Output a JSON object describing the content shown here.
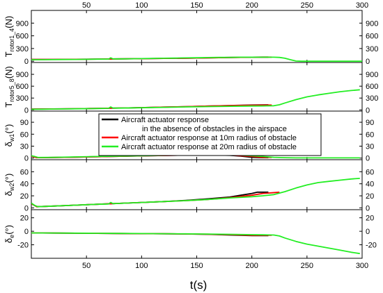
{
  "chart_data": [
    {
      "type": "line",
      "ylabel": {
        "main": "T",
        "sub": "rotor1_4",
        "unit": "(N)"
      },
      "yticks": [
        0,
        300,
        600,
        900
      ],
      "ylim": [
        -30,
        1200
      ],
      "x": [
        0,
        10,
        20,
        30,
        40,
        50,
        60,
        70,
        80,
        90,
        100,
        110,
        120,
        130,
        140,
        150,
        160,
        170,
        180,
        190,
        200,
        210,
        215,
        220,
        225,
        230,
        240,
        250,
        260,
        270,
        280,
        290,
        300
      ],
      "series": [
        {
          "name": "Aircraft actuator response in the absence of obstacles in the airspace",
          "color": "#000000",
          "x": [
            0,
            20,
            40,
            60,
            80,
            100,
            120,
            140,
            160,
            180,
            190,
            200,
            210,
            215
          ],
          "values": [
            40,
            42,
            46,
            50,
            55,
            60,
            66,
            72,
            80,
            88,
            92,
            95,
            96,
            96
          ]
        },
        {
          "name": "Aircraft actuator response at 10m radius of obstacle",
          "color": "#ff0000",
          "x": [
            0,
            20,
            40,
            60,
            80,
            100,
            120,
            140,
            160,
            180,
            190,
            200,
            210,
            218
          ],
          "values": [
            40,
            42,
            46,
            50,
            55,
            60,
            66,
            72,
            80,
            88,
            92,
            95,
            96,
            96
          ]
        },
        {
          "name": "Aircraft actuator response at 20m radius of obstacle",
          "color": "#22ee22",
          "x": [
            0,
            10,
            20,
            30,
            40,
            50,
            60,
            70,
            72,
            74,
            80,
            90,
            100,
            110,
            120,
            130,
            140,
            150,
            160,
            170,
            180,
            190,
            200,
            210,
            220,
            225,
            230,
            235,
            240,
            245,
            250,
            260,
            270,
            280,
            290,
            300
          ],
          "values": [
            35,
            36,
            38,
            40,
            42,
            45,
            48,
            50,
            80,
            55,
            55,
            58,
            62,
            66,
            70,
            74,
            78,
            82,
            86,
            90,
            92,
            94,
            95,
            95,
            94,
            90,
            70,
            35,
            5,
            0,
            0,
            0,
            0,
            0,
            0,
            0
          ]
        }
      ]
    },
    {
      "type": "line",
      "ylabel": {
        "main": "T",
        "sub": "rotor5_8",
        "unit": "(N)"
      },
      "yticks": [
        0,
        300,
        600,
        900
      ],
      "ylim": [
        -30,
        1200
      ],
      "series": [
        {
          "name": "Aircraft actuator response in the absence of obstacles in the airspace",
          "color": "#000000",
          "x": [
            0,
            20,
            40,
            60,
            80,
            100,
            120,
            140,
            160,
            180,
            200,
            215
          ],
          "values": [
            20,
            25,
            30,
            38,
            48,
            58,
            70,
            82,
            96,
            110,
            122,
            128
          ]
        },
        {
          "name": "Aircraft actuator response at 10m radius of obstacle",
          "color": "#ff0000",
          "x": [
            0,
            20,
            40,
            60,
            80,
            100,
            120,
            140,
            160,
            180,
            200,
            218
          ],
          "values": [
            20,
            25,
            30,
            38,
            48,
            58,
            70,
            82,
            96,
            108,
            118,
            122
          ]
        },
        {
          "name": "Aircraft actuator response at 20m radius of obstacle",
          "color": "#22ee22",
          "x": [
            0,
            10,
            20,
            40,
            60,
            70,
            72,
            74,
            80,
            100,
            120,
            140,
            160,
            180,
            200,
            210,
            220,
            225,
            230,
            240,
            250,
            260,
            270,
            280,
            290,
            298
          ],
          "values": [
            15,
            18,
            22,
            28,
            35,
            40,
            75,
            45,
            45,
            55,
            65,
            75,
            85,
            92,
            98,
            100,
            105,
            130,
            175,
            260,
            330,
            380,
            420,
            460,
            490,
            510
          ]
        }
      ]
    },
    {
      "type": "line",
      "ylabel": {
        "main": "δ",
        "sub": "w1",
        "unit": "(°)"
      },
      "yticks": [
        0,
        30,
        60,
        90
      ],
      "ylim": [
        -4,
        118
      ],
      "series": [
        {
          "name": "Aircraft actuator response in the absence of obstacles in the airspace",
          "color": "#000000",
          "x": [
            0,
            5,
            20,
            40,
            60,
            80,
            100,
            120,
            140,
            160,
            180,
            190,
            200,
            210,
            215
          ],
          "values": [
            5,
            1,
            1.5,
            2.5,
            3.5,
            4.5,
            5.5,
            6.5,
            7.5,
            8,
            7,
            5,
            2,
            1,
            1
          ]
        },
        {
          "name": "Aircraft actuator response at 10m radius of obstacle",
          "color": "#ff0000",
          "x": [
            0,
            5,
            20,
            40,
            60,
            80,
            100,
            120,
            140,
            160,
            180,
            190,
            200,
            210,
            218
          ],
          "values": [
            5,
            1,
            1.5,
            2.5,
            3.5,
            4.5,
            5.5,
            6.5,
            7.5,
            8,
            7.5,
            6,
            4,
            2,
            1.5
          ]
        },
        {
          "name": "Aircraft actuator response at 20m radius of obstacle",
          "color": "#22ee22",
          "x": [
            0,
            3,
            6,
            20,
            40,
            60,
            80,
            100,
            120,
            140,
            160,
            180,
            200,
            210,
            220,
            230,
            240,
            260,
            280,
            298
          ],
          "values": [
            6,
            4,
            1.5,
            2,
            3,
            4,
            5,
            6,
            7,
            8,
            9,
            8.5,
            6,
            4,
            2,
            1,
            0.5,
            0.5,
            0.5,
            0.5
          ]
        }
      ]
    },
    {
      "type": "line",
      "ylabel": {
        "main": "δ",
        "sub": "w2",
        "unit": "(°)"
      },
      "yticks": [
        0,
        20,
        40,
        60
      ],
      "ylim": [
        -3,
        80
      ],
      "series": [
        {
          "name": "Aircraft actuator response in the absence of obstacles in the airspace",
          "color": "#000000",
          "x": [
            0,
            5,
            20,
            40,
            60,
            80,
            100,
            120,
            140,
            160,
            180,
            190,
            200,
            205,
            215
          ],
          "values": [
            7,
            2,
            3,
            4.5,
            6,
            7.5,
            9,
            10.5,
            12.5,
            15,
            18,
            21,
            24,
            26,
            26
          ]
        },
        {
          "name": "Aircraft actuator response at 10m radius of obstacle",
          "color": "#ff0000",
          "x": [
            0,
            5,
            20,
            40,
            60,
            80,
            100,
            120,
            140,
            160,
            180,
            200,
            210,
            218,
            225
          ],
          "values": [
            7,
            2,
            3,
            4.5,
            6,
            7.5,
            9,
            10.5,
            12,
            14,
            17,
            21,
            24,
            25,
            26
          ]
        },
        {
          "name": "Aircraft actuator response at 20m radius of obstacle",
          "color": "#22ee22",
          "x": [
            0,
            3,
            6,
            20,
            40,
            60,
            70,
            72,
            74,
            80,
            100,
            120,
            140,
            160,
            180,
            200,
            210,
            220,
            230,
            240,
            250,
            260,
            270,
            280,
            290,
            298
          ],
          "values": [
            8,
            4,
            2,
            3,
            4.5,
            6,
            6.5,
            9,
            7,
            7.5,
            9,
            10.5,
            12,
            14,
            16.5,
            18.5,
            20,
            22,
            27,
            33,
            38,
            42,
            44,
            46,
            48,
            49
          ]
        }
      ]
    },
    {
      "type": "line",
      "ylabel": {
        "main": "δ",
        "sub": "e",
        "unit": "(°)"
      },
      "yticks_left": [
        -20,
        0,
        20
      ],
      "yticks_right": [
        -20,
        0,
        20
      ],
      "ylim": [
        -40,
        32
      ],
      "series": [
        {
          "name": "Aircraft actuator response in the absence of obstacles in the airspace",
          "color": "#000000",
          "x": [
            0,
            20,
            40,
            60,
            80,
            100,
            120,
            140,
            160,
            180,
            200,
            215
          ],
          "values": [
            -2.5,
            -2.7,
            -2.9,
            -3.1,
            -3.3,
            -3.5,
            -3.7,
            -4,
            -4.5,
            -5.5,
            -6.5,
            -6.5
          ]
        },
        {
          "name": "Aircraft actuator response at 10m radius of obstacle",
          "color": "#ff0000",
          "x": [
            0,
            20,
            40,
            60,
            80,
            100,
            120,
            140,
            160,
            180,
            200,
            218
          ],
          "values": [
            -2.5,
            -2.7,
            -2.9,
            -3.1,
            -3.3,
            -3.5,
            -3.7,
            -4,
            -4.3,
            -5,
            -5.8,
            -6
          ]
        },
        {
          "name": "Aircraft actuator response at 20m radius of obstacle",
          "color": "#22ee22",
          "x": [
            0,
            20,
            40,
            60,
            80,
            100,
            120,
            140,
            160,
            180,
            200,
            210,
            220,
            225,
            230,
            240,
            250,
            260,
            270,
            280,
            290,
            298
          ],
          "values": [
            -2.5,
            -2.6,
            -2.8,
            -3,
            -3.2,
            -3.4,
            -3.6,
            -3.8,
            -4.1,
            -4.5,
            -5,
            -5.2,
            -5.5,
            -7,
            -10,
            -15,
            -19,
            -22,
            -25,
            -28,
            -31,
            -33
          ]
        }
      ]
    }
  ],
  "axes": {
    "xlim": [
      0,
      300
    ],
    "xticks": [
      50,
      100,
      150,
      200,
      250,
      300
    ],
    "xlabel": "t(s)"
  },
  "legend": {
    "entries": [
      {
        "lines": [
          "Aircraft actuator response",
          "in the absence of obstacles in the airspace"
        ],
        "color": "#000000"
      },
      {
        "lines": [
          "Aircraft actuator response at 10m radius of obstacle"
        ],
        "color": "#ff0000"
      },
      {
        "lines": [
          "Aircraft actuator response at 20m radius of obstacle"
        ],
        "color": "#22ee22"
      }
    ]
  }
}
